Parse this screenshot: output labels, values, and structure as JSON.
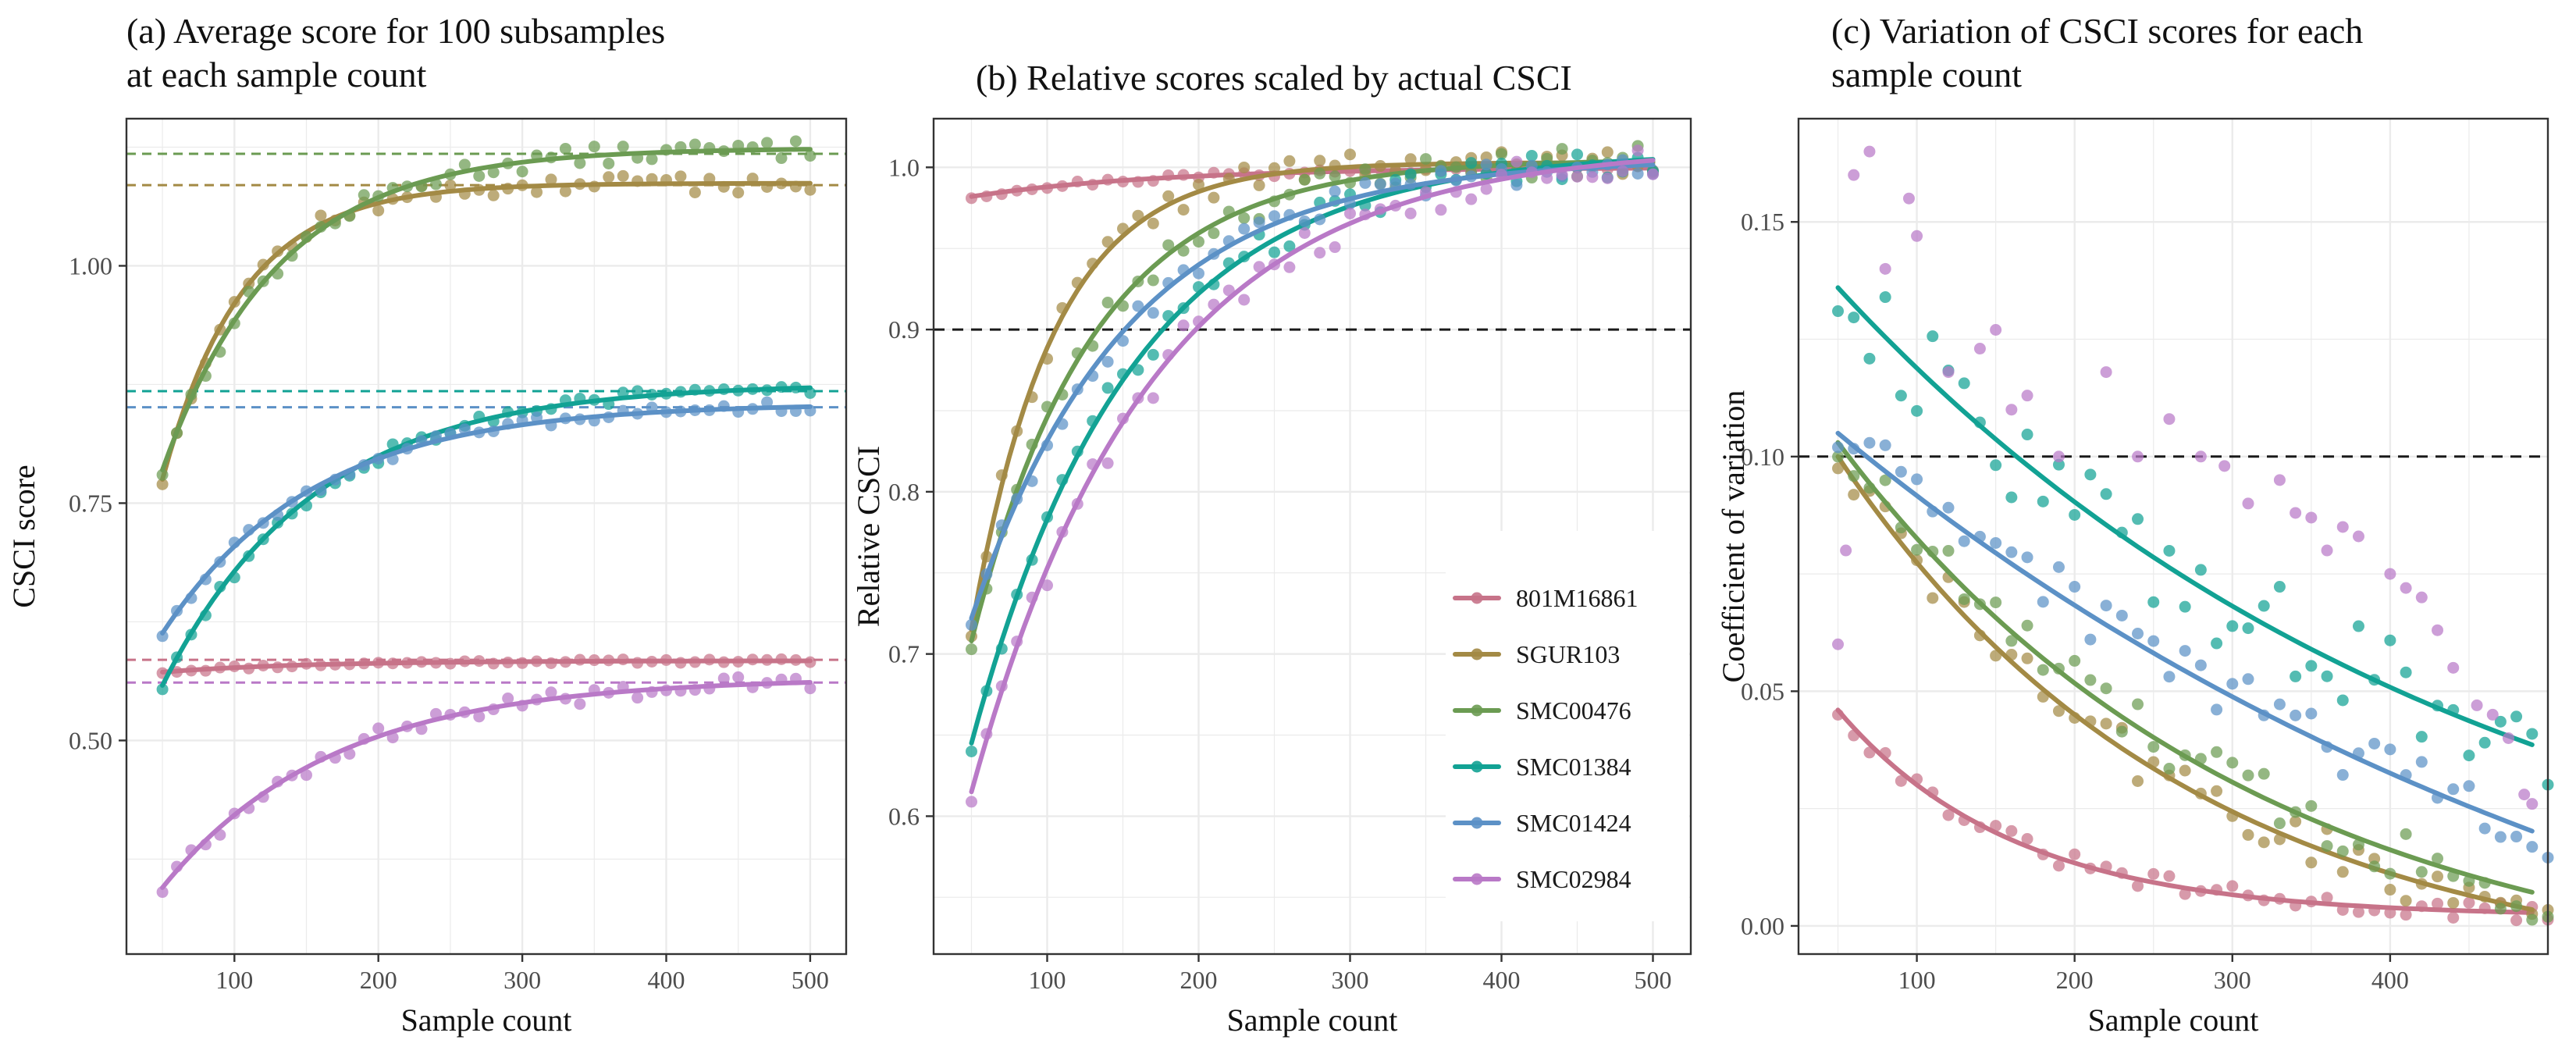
{
  "colors": {
    "801M16861": "#C77389",
    "SGUR103": "#A38A45",
    "SMC00476": "#6B9B52",
    "SMC01384": "#12A294",
    "SMC01424": "#5C91C6",
    "SMC02984": "#B979C7"
  },
  "legend": {
    "entries": [
      "801M16861",
      "SGUR103",
      "SMC00476",
      "SMC01384",
      "SMC01424",
      "SMC02984"
    ],
    "placement": "inside-bottom-right of panel b"
  },
  "chart_data": [
    {
      "id": "a",
      "type": "scatter",
      "title_line1": "(a) Average score for 100 subsamples",
      "title_line2": "at each sample count",
      "xlabel": "Sample count",
      "ylabel": "CSCI score",
      "xlim": [
        25,
        525
      ],
      "ylim": [
        0.275,
        1.155
      ],
      "xticks": [
        100,
        200,
        300,
        400,
        500
      ],
      "yticks": [
        0.5,
        0.75,
        1.0
      ],
      "ytick_labels": [
        "0.50",
        "0.75",
        "1.00"
      ],
      "grid": true,
      "hlines": [
        {
          "series": "801M16861",
          "y": 0.585
        },
        {
          "series": "SGUR103",
          "y": 1.085
        },
        {
          "series": "SMC00476",
          "y": 1.118
        },
        {
          "series": "SMC01384",
          "y": 0.868
        },
        {
          "series": "SMC01424",
          "y": 0.851
        },
        {
          "series": "SMC02984",
          "y": 0.561
        }
      ],
      "series": [
        {
          "name": "801M16861",
          "curve": {
            "start": 0.572,
            "end": 0.584,
            "k": 0.01
          },
          "noise": 0.002,
          "seed": 11
        },
        {
          "name": "SGUR103",
          "curve": {
            "start": 0.775,
            "end": 1.087,
            "k": 0.018
          },
          "noise": 0.01,
          "seed": 12
        },
        {
          "name": "SMC00476",
          "curve": {
            "start": 0.785,
            "end": 1.124,
            "k": 0.0125
          },
          "noise": 0.01,
          "seed": 13
        },
        {
          "name": "SMC01384",
          "curve": {
            "start": 0.558,
            "end": 0.876,
            "k": 0.0095
          },
          "noise": 0.008,
          "seed": 14
        },
        {
          "name": "SMC01424",
          "curve": {
            "start": 0.613,
            "end": 0.855,
            "k": 0.0095
          },
          "noise": 0.006,
          "seed": 15
        },
        {
          "name": "SMC02984",
          "curve": {
            "start": 0.345,
            "end": 0.566,
            "k": 0.0085
          },
          "noise": 0.009,
          "seed": 16
        }
      ]
    },
    {
      "id": "b",
      "type": "scatter",
      "title_line1": "(b) Relative scores scaled by actual CSCI",
      "xlabel": "Sample count",
      "ylabel": "Relative CSCI",
      "xlim": [
        25,
        525
      ],
      "ylim": [
        0.515,
        1.03
      ],
      "xticks": [
        100,
        200,
        300,
        400,
        500
      ],
      "yticks": [
        0.6,
        0.7,
        0.8,
        0.9,
        1.0
      ],
      "ytick_labels": [
        "0.6",
        "0.7",
        "0.8",
        "0.9",
        "1.0"
      ],
      "grid": true,
      "hlines": [
        {
          "y": 0.9,
          "color": "#1a1a1a"
        }
      ],
      "series": [
        {
          "name": "801M16861",
          "curve": {
            "start": 0.982,
            "end": 1.0,
            "k": 0.008
          },
          "noise": 0.002,
          "seed": 21
        },
        {
          "name": "SGUR103",
          "curve": {
            "start": 0.715,
            "end": 1.003,
            "k": 0.0185
          },
          "noise": 0.008,
          "seed": 22
        },
        {
          "name": "SMC00476",
          "curve": {
            "start": 0.708,
            "end": 1.005,
            "k": 0.0125
          },
          "noise": 0.01,
          "seed": 23
        },
        {
          "name": "SMC01384",
          "curve": {
            "start": 0.645,
            "end": 1.01,
            "k": 0.0095
          },
          "noise": 0.01,
          "seed": 24
        },
        {
          "name": "SMC01424",
          "curve": {
            "start": 0.722,
            "end": 1.005,
            "k": 0.0098
          },
          "noise": 0.008,
          "seed": 25
        },
        {
          "name": "SMC02984",
          "curve": {
            "start": 0.615,
            "end": 1.013,
            "k": 0.0085
          },
          "noise": 0.012,
          "seed": 26
        }
      ]
    },
    {
      "id": "c",
      "type": "scatter",
      "title_line1": "(c) Variation of CSCI scores for each",
      "title_line2": "sample count",
      "xlabel": "Sample count",
      "ylabel": "Coefficient of variation",
      "xlim": [
        25,
        500
      ],
      "ylim": [
        -0.006,
        0.172
      ],
      "xticks": [
        100,
        200,
        300,
        400
      ],
      "yticks": [
        0.0,
        0.05,
        0.1,
        0.15
      ],
      "ytick_labels": [
        "0.00",
        "0.05",
        "0.10",
        "0.15"
      ],
      "grid": true,
      "hlines": [
        {
          "y": 0.1,
          "color": "#1a1a1a"
        }
      ],
      "series": [
        {
          "name": "801M16861",
          "curve": {
            "start": 0.046,
            "end": 0.002,
            "k": 0.009
          },
          "noise": 0.002,
          "seed": 31
        },
        {
          "name": "SGUR103",
          "curve": {
            "start": 0.1,
            "end": -0.012,
            "k": 0.0045
          },
          "noise": 0.005,
          "seed": 32
        },
        {
          "name": "SMC00476",
          "curve": {
            "start": 0.103,
            "end": -0.015,
            "k": 0.0038
          },
          "noise": 0.006,
          "seed": 33
        },
        {
          "name": "SMC01384",
          "curve": {
            "start": 0.136,
            "end": -0.01,
            "k": 0.0025
          },
          "noise": 0.01,
          "seed": 34
        },
        {
          "name": "SMC01424",
          "curve": {
            "start": 0.105,
            "end": -0.05,
            "k": 0.0018
          },
          "noise": 0.006,
          "seed": 35
        },
        {
          "name": "SMC02984",
          "points_only": true,
          "points": [
            [
              50,
              0.06
            ],
            [
              55,
              0.08
            ],
            [
              60,
              0.16
            ],
            [
              70,
              0.165
            ],
            [
              80,
              0.14
            ],
            [
              95,
              0.155
            ],
            [
              100,
              0.147
            ],
            [
              120,
              0.118
            ],
            [
              140,
              0.123
            ],
            [
              150,
              0.127
            ],
            [
              160,
              0.11
            ],
            [
              170,
              0.113
            ],
            [
              190,
              0.1
            ],
            [
              220,
              0.118
            ],
            [
              240,
              0.1
            ],
            [
              260,
              0.108
            ],
            [
              280,
              0.1
            ],
            [
              295,
              0.098
            ],
            [
              310,
              0.09
            ],
            [
              330,
              0.095
            ],
            [
              340,
              0.088
            ],
            [
              350,
              0.087
            ],
            [
              360,
              0.08
            ],
            [
              370,
              0.085
            ],
            [
              380,
              0.083
            ],
            [
              400,
              0.075
            ],
            [
              410,
              0.072
            ],
            [
              420,
              0.07
            ],
            [
              430,
              0.063
            ],
            [
              440,
              0.055
            ],
            [
              455,
              0.047
            ],
            [
              465,
              0.045
            ],
            [
              475,
              0.04
            ],
            [
              485,
              0.028
            ],
            [
              490,
              0.026
            ]
          ]
        }
      ]
    }
  ]
}
